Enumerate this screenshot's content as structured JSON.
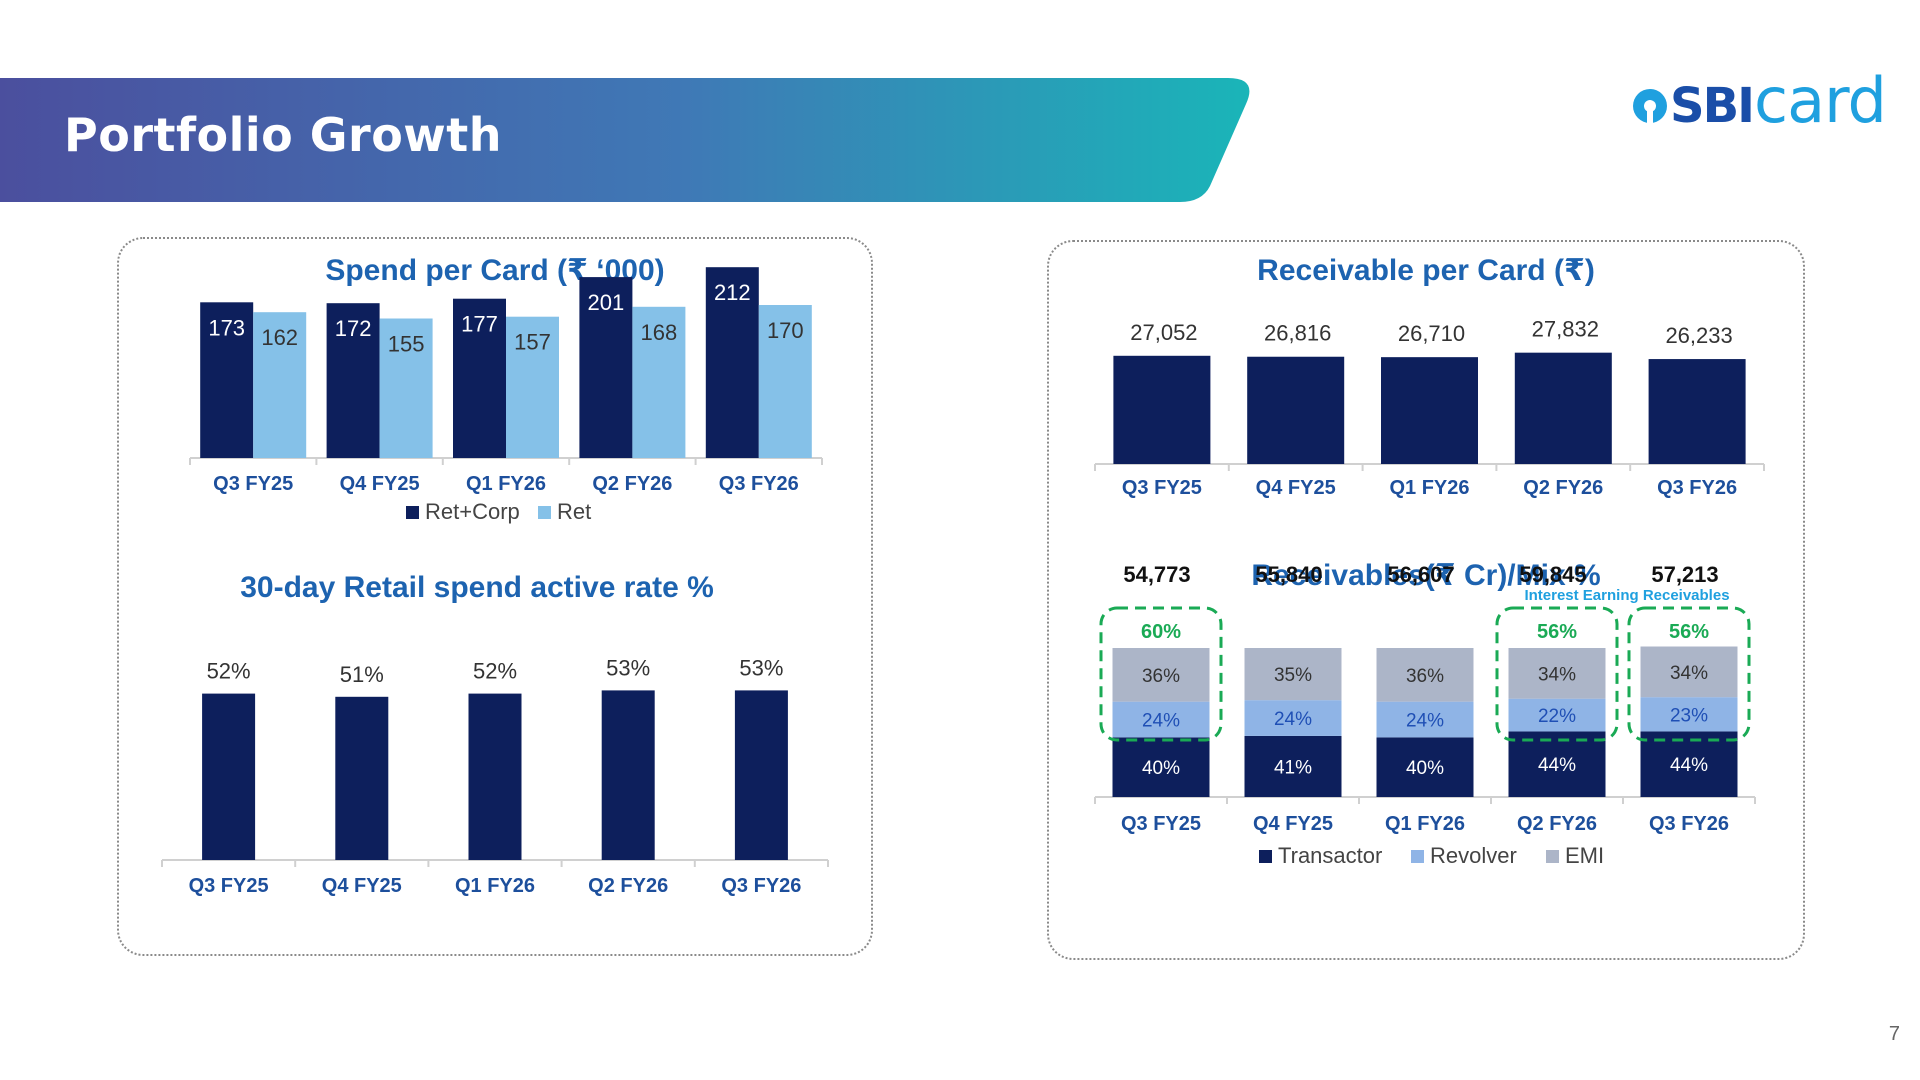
{
  "header": {
    "title": "Portfolio Growth",
    "logo_sbi": "SBI",
    "logo_card": "card"
  },
  "colors": {
    "navy": "#0d1f5c",
    "light_blue": "#85c1e8",
    "mid_blue": "#8fb4e6",
    "grey": "#acb5c8",
    "title_blue": "#1d63b0",
    "green": "#1aaa55"
  },
  "page_number": "7",
  "charts": {
    "spend_per_card": {
      "type": "bar",
      "title": "Spend per Card (₹ ‘000)",
      "categories": [
        "Q3 FY25",
        "Q4 FY25",
        "Q1 FY26",
        "Q2 FY26",
        "Q3 FY26"
      ],
      "series": [
        {
          "name": "Ret+Corp",
          "values": [
            173,
            172,
            177,
            201,
            212
          ]
        },
        {
          "name": "Ret",
          "values": [
            162,
            155,
            157,
            168,
            170
          ]
        }
      ],
      "ylim": [
        0,
        240
      ]
    },
    "active_rate": {
      "type": "bar",
      "title": "30-day Retail spend active rate %",
      "categories": [
        "Q3 FY25",
        "Q4 FY25",
        "Q1 FY26",
        "Q2 FY26",
        "Q3 FY26"
      ],
      "values": [
        52,
        51,
        52,
        53,
        53
      ],
      "labels": [
        "52%",
        "51%",
        "52%",
        "53%",
        "53%"
      ],
      "ylim": [
        0,
        60
      ]
    },
    "receivable_per_card": {
      "type": "bar",
      "title": "Receivable per Card (₹)",
      "categories": [
        "Q3 FY25",
        "Q4 FY25",
        "Q1 FY26",
        "Q2 FY26",
        "Q3 FY26"
      ],
      "values": [
        27052,
        26816,
        26710,
        27832,
        26233
      ],
      "labels": [
        "27,052",
        "26,816",
        "26,710",
        "27,832",
        "26,233"
      ],
      "ylim": [
        0,
        34000
      ]
    },
    "receivables_mix": {
      "type": "bar",
      "title": "Receivables(₹ Cr)/Mix %",
      "categories": [
        "Q3 FY25",
        "Q4 FY25",
        "Q1 FY26",
        "Q2 FY26",
        "Q3 FY26"
      ],
      "totals": [
        "54,773",
        "55,840",
        "56,607",
        "59,845",
        "57,213"
      ],
      "series": [
        {
          "name": "Transactor",
          "values": [
            40,
            41,
            40,
            44,
            44
          ],
          "labels": [
            "40%",
            "41%",
            "40%",
            "44%",
            "44%"
          ]
        },
        {
          "name": "Revolver",
          "values": [
            24,
            24,
            24,
            22,
            23
          ],
          "labels": [
            "24%",
            "24%",
            "24%",
            "22%",
            "23%"
          ]
        },
        {
          "name": "EMI",
          "values": [
            36,
            35,
            36,
            34,
            34
          ],
          "labels": [
            "36%",
            "35%",
            "36%",
            "34%",
            "34%"
          ]
        }
      ],
      "interest_earning": [
        {
          "index": 0,
          "label": "60%"
        },
        {
          "index": 3,
          "label": "56%"
        },
        {
          "index": 4,
          "label": "56%"
        }
      ],
      "interest_note": "Interest Earning Receivables",
      "ylim": [
        0,
        100
      ]
    }
  }
}
